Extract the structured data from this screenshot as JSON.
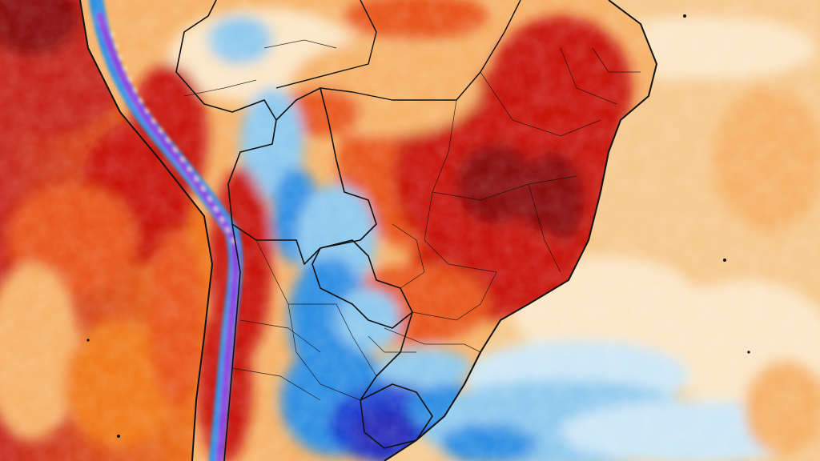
{
  "map": {
    "kind": "temperature-anomaly-heatmap",
    "region": "South America",
    "palette": {
      "ocean_pacific": "#f07a1c",
      "ocean_pacific_deep": "#c6281e",
      "ocean_atlantic_warm": "#f6c98f",
      "ocean_atlantic_light": "#fbe6c6",
      "ocean_atlantic_cool": "#cde7f6",
      "cold_light": "#8fc9ee",
      "cold_mid": "#2f8fe3",
      "cold_deep": "#1a3fd0",
      "cold_extreme": "#2b2dba",
      "warm_light": "#f6b36a",
      "warm_mid": "#e8561e",
      "warm_deep": "#c8160f",
      "warm_extreme": "#8a1010",
      "andes_purple": "#8c3fe0",
      "border": "#111111"
    },
    "icons": [
      "compass-free",
      "no-legend"
    ]
  }
}
